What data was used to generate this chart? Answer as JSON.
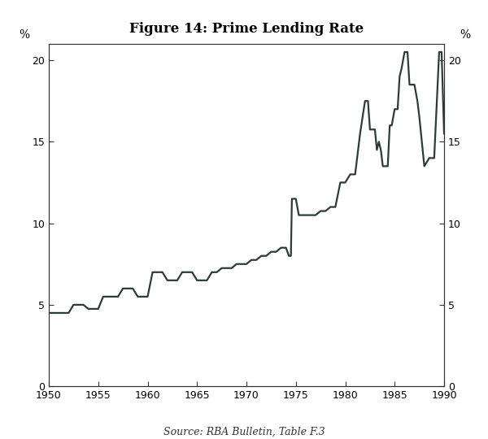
{
  "title": "Figure 14: Prime Lending Rate",
  "source": "Source: RBA Bulletin, Table F.3",
  "ylabel_left": "%",
  "ylabel_right": "%",
  "xlim": [
    1950,
    1990
  ],
  "ylim": [
    0,
    21
  ],
  "yticks": [
    0,
    5,
    10,
    15,
    20
  ],
  "xticks": [
    1950,
    1955,
    1960,
    1965,
    1970,
    1975,
    1980,
    1985,
    1990
  ],
  "line_color": "#2d3d35",
  "line_width": 1.6,
  "background_color": "#ffffff",
  "data": [
    [
      1950.0,
      4.5
    ],
    [
      1952.0,
      4.5
    ],
    [
      1952.5,
      5.0
    ],
    [
      1953.5,
      5.0
    ],
    [
      1954.0,
      4.75
    ],
    [
      1955.0,
      4.75
    ],
    [
      1955.5,
      5.5
    ],
    [
      1957.0,
      5.5
    ],
    [
      1957.5,
      6.0
    ],
    [
      1958.5,
      6.0
    ],
    [
      1959.0,
      5.5
    ],
    [
      1960.0,
      5.5
    ],
    [
      1960.5,
      7.0
    ],
    [
      1961.5,
      7.0
    ],
    [
      1962.0,
      6.5
    ],
    [
      1963.0,
      6.5
    ],
    [
      1963.5,
      7.0
    ],
    [
      1964.5,
      7.0
    ],
    [
      1965.0,
      6.5
    ],
    [
      1966.0,
      6.5
    ],
    [
      1966.5,
      7.0
    ],
    [
      1967.0,
      7.0
    ],
    [
      1967.5,
      7.25
    ],
    [
      1968.5,
      7.25
    ],
    [
      1969.0,
      7.5
    ],
    [
      1970.0,
      7.5
    ],
    [
      1970.5,
      7.75
    ],
    [
      1971.0,
      7.75
    ],
    [
      1971.5,
      8.0
    ],
    [
      1972.0,
      8.0
    ],
    [
      1972.5,
      8.25
    ],
    [
      1973.0,
      8.25
    ],
    [
      1973.5,
      8.5
    ],
    [
      1974.0,
      8.5
    ],
    [
      1974.3,
      8.0
    ],
    [
      1974.5,
      8.0
    ],
    [
      1974.6,
      11.5
    ],
    [
      1975.0,
      11.5
    ],
    [
      1975.3,
      10.5
    ],
    [
      1976.5,
      10.5
    ],
    [
      1977.0,
      10.5
    ],
    [
      1977.5,
      10.75
    ],
    [
      1978.0,
      10.75
    ],
    [
      1978.5,
      11.0
    ],
    [
      1979.0,
      11.0
    ],
    [
      1979.5,
      12.5
    ],
    [
      1980.0,
      12.5
    ],
    [
      1980.5,
      13.0
    ],
    [
      1981.0,
      13.0
    ],
    [
      1981.5,
      15.5
    ],
    [
      1982.0,
      17.5
    ],
    [
      1982.3,
      17.5
    ],
    [
      1982.5,
      15.75
    ],
    [
      1983.0,
      15.75
    ],
    [
      1983.2,
      14.5
    ],
    [
      1983.4,
      15.0
    ],
    [
      1983.6,
      14.5
    ],
    [
      1983.8,
      13.5
    ],
    [
      1984.3,
      13.5
    ],
    [
      1984.5,
      16.0
    ],
    [
      1984.7,
      16.0
    ],
    [
      1985.0,
      17.0
    ],
    [
      1985.3,
      17.0
    ],
    [
      1985.5,
      19.0
    ],
    [
      1985.7,
      19.5
    ],
    [
      1986.0,
      20.5
    ],
    [
      1986.3,
      20.5
    ],
    [
      1986.5,
      18.5
    ],
    [
      1987.0,
      18.5
    ],
    [
      1987.3,
      17.5
    ],
    [
      1987.5,
      16.5
    ],
    [
      1988.0,
      13.5
    ],
    [
      1988.5,
      14.0
    ],
    [
      1989.0,
      14.0
    ],
    [
      1989.5,
      20.5
    ],
    [
      1989.75,
      20.5
    ],
    [
      1990.0,
      15.5
    ]
  ]
}
